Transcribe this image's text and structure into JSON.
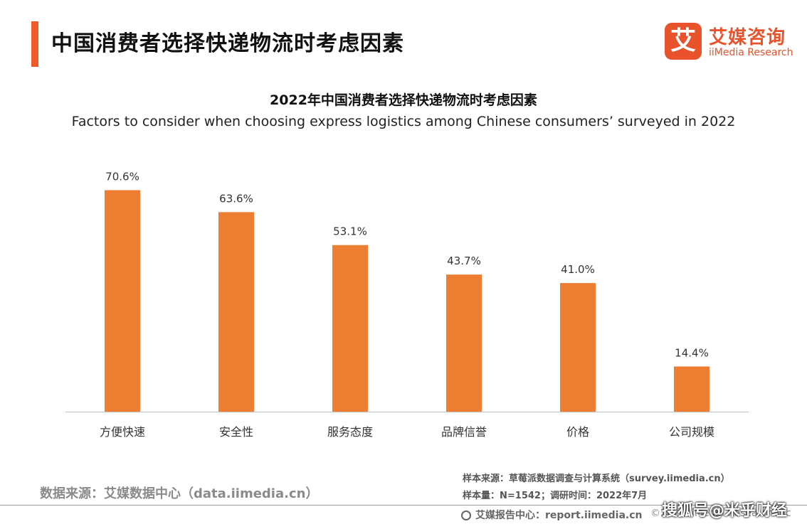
{
  "header": {
    "title": "中国消费者选择快递物流时考虑因素",
    "accent_color": "#f05a28"
  },
  "logo": {
    "mark": "艾",
    "name_cn": "艾媒咨询",
    "name_en": "iiMedia Research",
    "color": "#e8532b"
  },
  "chart_data": {
    "type": "bar",
    "title": "2022年中国消费者选择快递物流时考虑因素",
    "subtitle": "Factors to consider when choosing express logistics among Chinese consumers’ surveyed in 2022",
    "categories": [
      "方便快速",
      "安全性",
      "服务态度",
      "品牌信誉",
      "价格",
      "公司规模"
    ],
    "values": [
      70.6,
      63.6,
      53.1,
      43.7,
      41.0,
      14.4
    ],
    "value_labels": [
      "70.6%",
      "63.6%",
      "53.1%",
      "43.7%",
      "41.0%",
      "14.4%"
    ],
    "unit": "%",
    "ylim": [
      0,
      80
    ],
    "grid": false,
    "legend": "none",
    "bar_color": "#ed7d31"
  },
  "footer": {
    "data_source": "数据来源：艾媒数据中心（data.iimedia.cn）",
    "sample_source": "样本来源：草莓派数据调查与计算系统（survey.iimedia.cn）",
    "sample_size": "样本量：N=1542；调研时间：2022年7月",
    "report_center": "艾媒报告中心：report.iimedia.cn",
    "copyright": "©2022 iiMedia Research Inc",
    "watermark": "搜狐号@米乎财经"
  }
}
